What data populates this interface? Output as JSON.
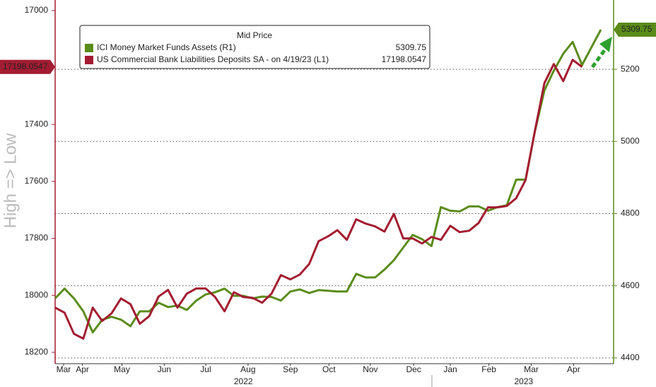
{
  "chart_data": {
    "type": "line",
    "y_axis_label": "High => Low",
    "legend_title": "Mid Price",
    "xlim": [
      0,
      58
    ],
    "xticks": [
      {
        "value": 0.9,
        "label": "Mar"
      },
      {
        "value": 2.9,
        "label": "Apr"
      },
      {
        "value": 7.1,
        "label": "May"
      },
      {
        "value": 11.6,
        "label": "Jun"
      },
      {
        "value": 16,
        "label": "Jul"
      },
      {
        "value": 20.5,
        "label": "Aug"
      },
      {
        "value": 25,
        "label": "Sep"
      },
      {
        "value": 29.1,
        "label": "Oct"
      },
      {
        "value": 33.5,
        "label": "Nov"
      },
      {
        "value": 38.1,
        "label": "Dec"
      },
      {
        "value": 42,
        "label": "Jan"
      },
      {
        "value": 46.1,
        "label": "Feb"
      },
      {
        "value": 50.6,
        "label": "Mar"
      },
      {
        "value": 55.1,
        "label": "Apr"
      }
    ],
    "years": [
      {
        "value": 20,
        "label": "2022"
      },
      {
        "value": 49.8,
        "label": "2023"
      }
    ],
    "ylim": [
      16963,
      18240
    ],
    "y_inverted": true,
    "yticks": [
      17000,
      17200,
      17400,
      17600,
      17800,
      18000,
      18200
    ],
    "y2lim": [
      4384,
      5392
    ],
    "y2ticks": [
      4400,
      4600,
      4800,
      5000,
      5200
    ],
    "grid": true,
    "series": [
      {
        "name": "ICI Money Market Funds Assets (R1)",
        "color": "#5b8c1a",
        "axis": "y2",
        "values": [
          4565,
          4592,
          4565,
          4529,
          4471,
          4506,
          4514,
          4506,
          4488,
          4529,
          4529,
          4553,
          4541,
          4545,
          4533,
          4559,
          4576,
          4582,
          4592,
          4572,
          4572,
          4565,
          4570,
          4569,
          4559,
          4584,
          4590,
          4580,
          4588,
          4586,
          4584,
          4584,
          4633,
          4623,
          4623,
          4645,
          4671,
          4706,
          4741,
          4729,
          4710,
          4818,
          4808,
          4806,
          4820,
          4820,
          4808,
          4818,
          4823,
          4894,
          4894,
          5029,
          5141,
          5196,
          5243,
          5276,
          5212,
          5261,
          5309.75
        ]
      },
      {
        "name": "US Commercial Bank Liabilities Deposits SA - on 4/19/23 (L1)",
        "color": "#a31c31",
        "axis": "y",
        "values": [
          18043,
          18061,
          18135,
          18152,
          18043,
          18090,
          18063,
          18011,
          18031,
          18100,
          18073,
          18004,
          17981,
          18043,
          17994,
          17976,
          17976,
          18006,
          18056,
          17989,
          18006,
          18009,
          18026,
          17994,
          17929,
          17944,
          17927,
          17890,
          17810,
          17793,
          17771,
          17805,
          17733,
          17748,
          17758,
          17776,
          17714,
          17800,
          17800,
          17818,
          17795,
          17805,
          17756,
          17778,
          17773,
          17746,
          17691,
          17691,
          17686,
          17659,
          17595,
          17421,
          17255,
          17188,
          17248,
          17173,
          17198.0547,
          null,
          null
        ]
      }
    ]
  }
}
